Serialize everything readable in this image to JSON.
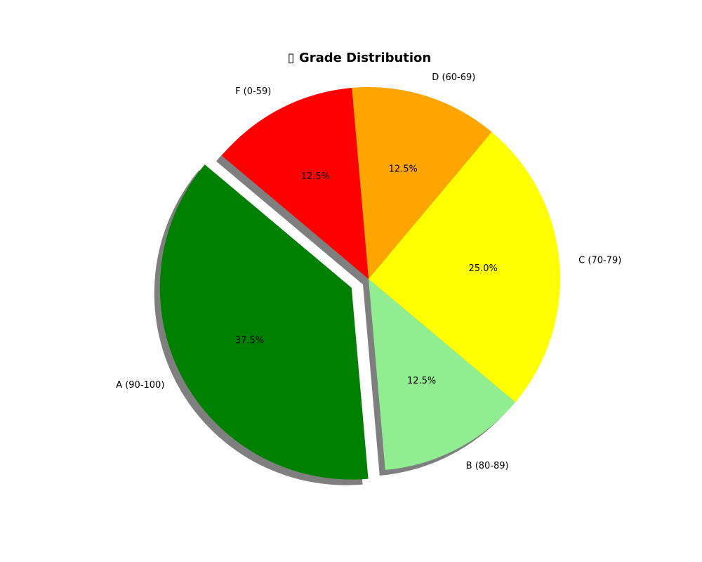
{
  "chart_data": {
    "type": "pie",
    "title": "▯ Grade Distribution",
    "start_angle_deg": 140,
    "counterclockwise": true,
    "shadow": true,
    "slices": [
      {
        "label": "A (90-100)",
        "value": 37.5,
        "pct_text": "37.5%",
        "color": "#008000",
        "explode": 0.1
      },
      {
        "label": "B (80-89)",
        "value": 12.5,
        "pct_text": "12.5%",
        "color": "#90ee90",
        "explode": 0
      },
      {
        "label": "C (70-79)",
        "value": 25.0,
        "pct_text": "25.0%",
        "color": "#ffff00",
        "explode": 0
      },
      {
        "label": "D (60-69)",
        "value": 12.5,
        "pct_text": "12.5%",
        "color": "#ffa500",
        "explode": 0
      },
      {
        "label": "F (0-59)",
        "value": 12.5,
        "pct_text": "12.5%",
        "color": "#ff0000",
        "explode": 0
      }
    ]
  }
}
